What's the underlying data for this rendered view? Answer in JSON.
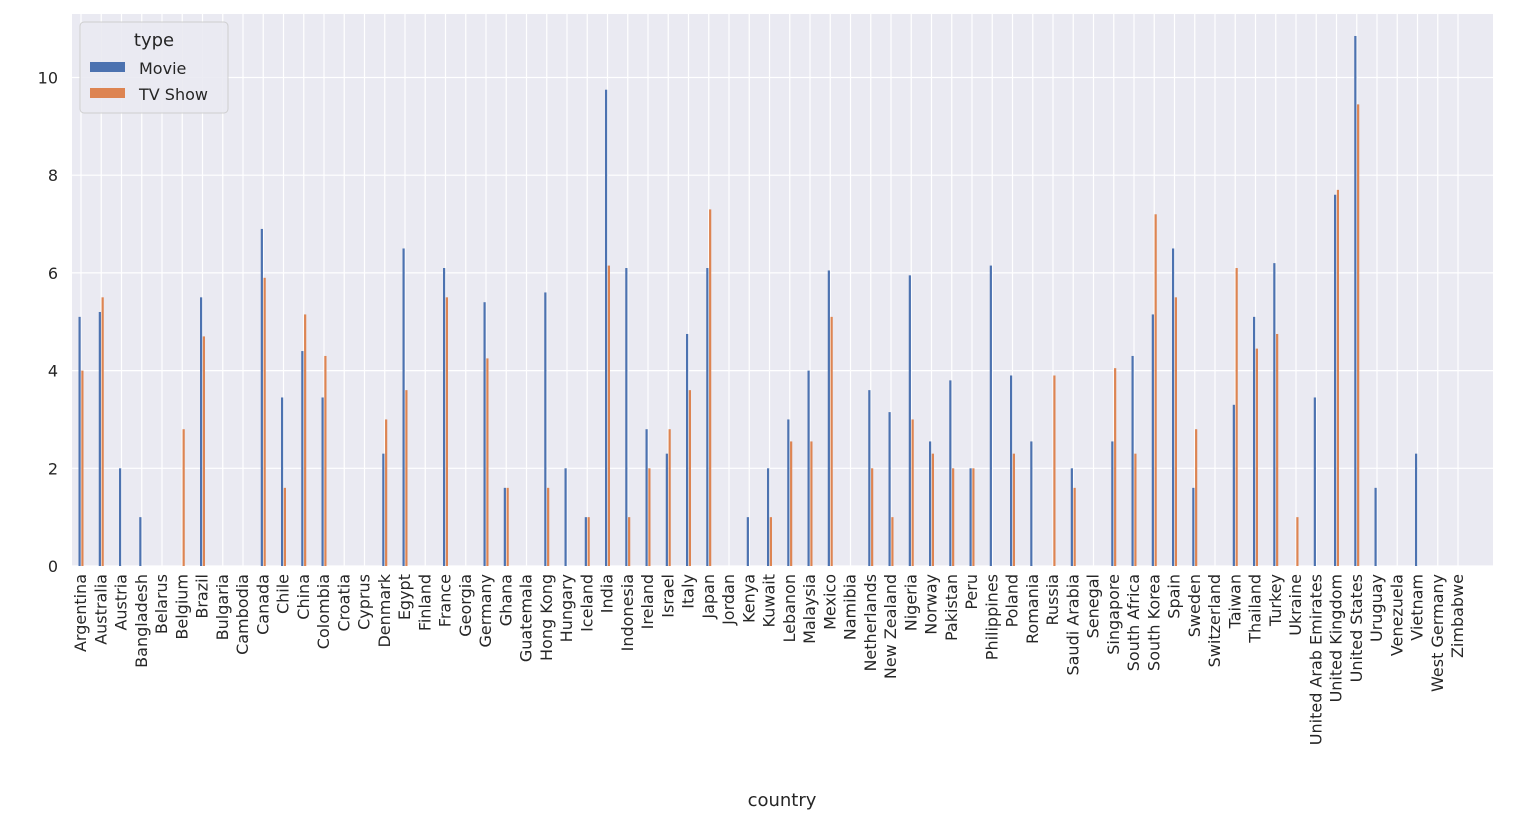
{
  "chart_data": {
    "type": "bar",
    "title": "",
    "xlabel": "country",
    "ylabel": "",
    "ylim": [
      0,
      11.3
    ],
    "yticks": [
      0,
      2,
      4,
      6,
      8,
      10
    ],
    "grid": true,
    "legend": {
      "title": "type",
      "position": "top-left"
    },
    "colors": {
      "Movie": "#4c72b0",
      "TV Show": "#dd8452",
      "background": "#eaeaf2",
      "grid": "#ffffff"
    },
    "categories": [
      "Argentina",
      "Australia",
      "Austria",
      "Bangladesh",
      "Belarus",
      "Belgium",
      "Brazil",
      "Bulgaria",
      "Cambodia",
      "Canada",
      "Chile",
      "China",
      "Colombia",
      "Croatia",
      "Cyprus",
      "Denmark",
      "Egypt",
      "Finland",
      "France",
      "Georgia",
      "Germany",
      "Ghana",
      "Guatemala",
      "Hong Kong",
      "Hungary",
      "Iceland",
      "India",
      "Indonesia",
      "Ireland",
      "Israel",
      "Italy",
      "Japan",
      "Jordan",
      "Kenya",
      "Kuwait",
      "Lebanon",
      "Malaysia",
      "Mexico",
      "Namibia",
      "Netherlands",
      "New Zealand",
      "Nigeria",
      "Norway",
      "Pakistan",
      "Peru",
      "Philippines",
      "Poland",
      "Romania",
      "Russia",
      "Saudi Arabia",
      "Senegal",
      "Singapore",
      "South Africa",
      "South Korea",
      "Spain",
      "Sweden",
      "Switzerland",
      "Taiwan",
      "Thailand",
      "Turkey",
      "Ukraine",
      "United Arab Emirates",
      "United Kingdom",
      "United States",
      "Uruguay",
      "Venezuela",
      "Vietnam",
      "West Germany",
      "Zimbabwe"
    ],
    "series": [
      {
        "name": "Movie",
        "values": [
          5.1,
          5.2,
          2.0,
          1.0,
          0,
          0,
          5.5,
          0,
          0,
          6.9,
          3.45,
          4.4,
          3.45,
          0,
          0,
          2.3,
          6.5,
          0,
          6.1,
          0,
          5.4,
          1.6,
          0,
          5.6,
          2.0,
          1.0,
          9.75,
          6.1,
          2.8,
          2.3,
          4.75,
          6.1,
          0,
          1.0,
          2.0,
          3.0,
          4.0,
          6.05,
          0,
          3.6,
          3.15,
          5.95,
          2.55,
          3.8,
          2.0,
          6.15,
          3.9,
          2.55,
          0,
          2.0,
          0,
          2.55,
          4.3,
          5.15,
          6.5,
          1.6,
          0,
          3.3,
          5.1,
          6.2,
          0,
          3.45,
          7.6,
          10.85,
          1.6,
          0,
          2.3,
          0,
          0
        ]
      },
      {
        "name": "TV Show",
        "values": [
          4.0,
          5.5,
          0,
          0,
          0,
          2.8,
          4.7,
          0,
          0,
          5.9,
          1.6,
          5.15,
          4.3,
          0,
          0,
          3.0,
          3.6,
          0,
          5.5,
          0,
          4.25,
          1.6,
          0,
          1.6,
          0,
          1.0,
          6.15,
          1.0,
          2.0,
          2.8,
          3.6,
          7.3,
          0,
          0,
          1.0,
          2.55,
          2.55,
          5.1,
          0,
          2.0,
          1.0,
          3.0,
          2.3,
          2.0,
          2.0,
          0,
          2.3,
          0,
          3.9,
          1.6,
          0,
          4.05,
          2.3,
          7.2,
          5.5,
          2.8,
          0,
          6.1,
          4.45,
          4.75,
          1.0,
          0,
          7.7,
          9.45,
          0,
          0,
          0,
          0,
          0
        ]
      }
    ]
  }
}
